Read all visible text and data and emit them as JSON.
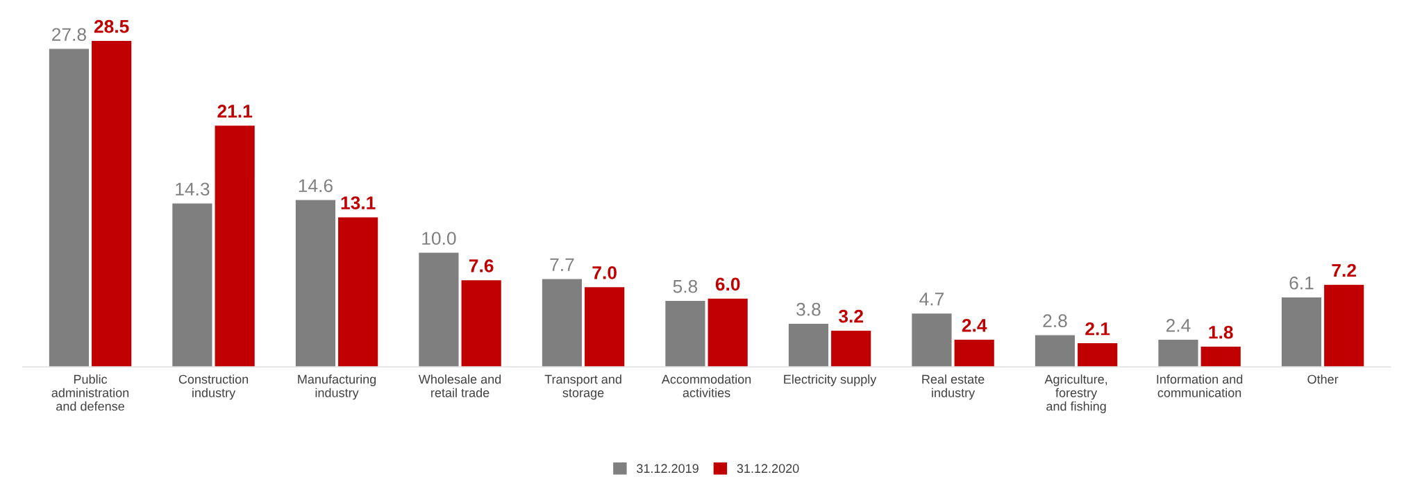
{
  "chart_data": {
    "type": "bar",
    "categories": [
      "Public\nadministration\nand defense",
      "Construction\nindustry",
      "Manufacturing\nindustry",
      "Wholesale and\nretail trade",
      "Transport and\nstorage",
      "Accommodation\nactivities",
      "Electricity supply",
      "Real estate\nindustry",
      "Agriculture,\nforestry\nand fishing",
      "Information and\ncommunication",
      "Other"
    ],
    "series": [
      {
        "name": "31.12.2019",
        "color": "#7f7f7f",
        "values": [
          27.8,
          14.3,
          14.6,
          10.0,
          7.7,
          5.8,
          3.8,
          4.7,
          2.8,
          2.4,
          6.1
        ],
        "value_labels": [
          "27.8",
          "14.3",
          "14.6",
          "10.0",
          "7.7",
          "5.8",
          "3.8",
          "4.7",
          "2.8",
          "2.4",
          "6.1"
        ]
      },
      {
        "name": "31.12.2020",
        "color": "#c00000",
        "values": [
          28.5,
          21.1,
          13.1,
          7.6,
          7.0,
          6.0,
          3.2,
          2.4,
          2.1,
          1.8,
          7.2
        ],
        "value_labels": [
          "28.5",
          "21.1",
          "13.1",
          "7.6",
          "7.0",
          "6.0",
          "3.2",
          "2.4",
          "2.1",
          "1.8",
          "7.2"
        ]
      }
    ],
    "legend": "bottom",
    "grid": false
  }
}
